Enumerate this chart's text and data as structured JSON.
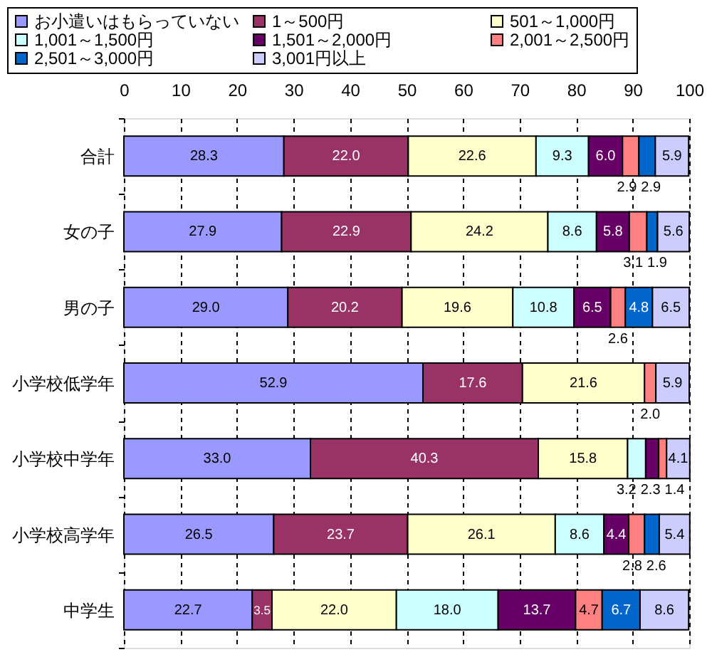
{
  "chart_data": {
    "type": "bar",
    "orientation": "horizontal",
    "stacked": true,
    "categories": [
      "合計",
      "女の子",
      "男の子",
      "小学校低学年",
      "小学校中学年",
      "小学校高学年",
      "中学生"
    ],
    "series": [
      {
        "name": "お小遣いはもらっていない",
        "color": "#9999ff",
        "values": [
          28.3,
          27.9,
          29.0,
          52.9,
          33.0,
          26.5,
          22.7
        ],
        "value_labels": [
          "28.3",
          "27.9",
          "29.0",
          "52.9",
          "33.0",
          "26.5",
          "22.7"
        ]
      },
      {
        "name": "1～500円",
        "color": "#993366",
        "values": [
          22.0,
          22.9,
          20.2,
          17.6,
          40.3,
          23.7,
          3.5
        ],
        "value_labels": [
          "22.0",
          "22.9",
          "20.2",
          "17.6",
          "40.3",
          "23.7",
          "3.5"
        ]
      },
      {
        "name": "501～1,000円",
        "color": "#ffffcc",
        "values": [
          22.6,
          24.2,
          19.6,
          21.6,
          15.8,
          26.1,
          22.0
        ],
        "value_labels": [
          "22.6",
          "24.2",
          "19.6",
          "21.6",
          "15.8",
          "26.1",
          "22.0"
        ]
      },
      {
        "name": "1,001～1,500円",
        "color": "#ccffff",
        "values": [
          9.3,
          8.6,
          10.8,
          null,
          3.2,
          8.6,
          18.0
        ],
        "value_labels": [
          "9.3",
          "8.6",
          "10.8",
          null,
          "3.2",
          "8.6",
          "18.0"
        ]
      },
      {
        "name": "1,501～2,000円",
        "color": "#660066",
        "values": [
          6.0,
          5.8,
          6.5,
          null,
          2.3,
          4.4,
          13.7
        ],
        "value_labels": [
          "6.0",
          "5.8",
          "6.5",
          null,
          "2.3",
          "4.4",
          "13.7"
        ]
      },
      {
        "name": "2,001～2,500円",
        "color": "#ff8080",
        "values": [
          2.9,
          3.1,
          2.6,
          2.0,
          1.4,
          2.8,
          4.7
        ],
        "value_labels": [
          "2.9",
          "3.1",
          "2.6",
          "2.0",
          "1.4",
          "2.8",
          "4.7"
        ]
      },
      {
        "name": "2,501～3,000円",
        "color": "#0066cc",
        "values": [
          2.9,
          1.9,
          4.8,
          null,
          null,
          2.6,
          6.7
        ],
        "value_labels": [
          "2.9",
          "1.9",
          "4.8",
          null,
          null,
          "2.6",
          "6.7"
        ]
      },
      {
        "name": "3,001円以上",
        "color": "#ccccff",
        "values": [
          5.9,
          5.6,
          6.5,
          5.9,
          4.1,
          5.4,
          8.6
        ],
        "value_labels": [
          "5.9",
          "5.6",
          "6.5",
          "5.9",
          "4.1",
          "5.4",
          "8.6"
        ]
      }
    ],
    "xlim": [
      0,
      100
    ],
    "xticks": [
      0,
      10,
      20,
      30,
      40,
      50,
      60,
      70,
      80,
      90,
      100
    ],
    "grid": "x",
    "legend": "top"
  }
}
